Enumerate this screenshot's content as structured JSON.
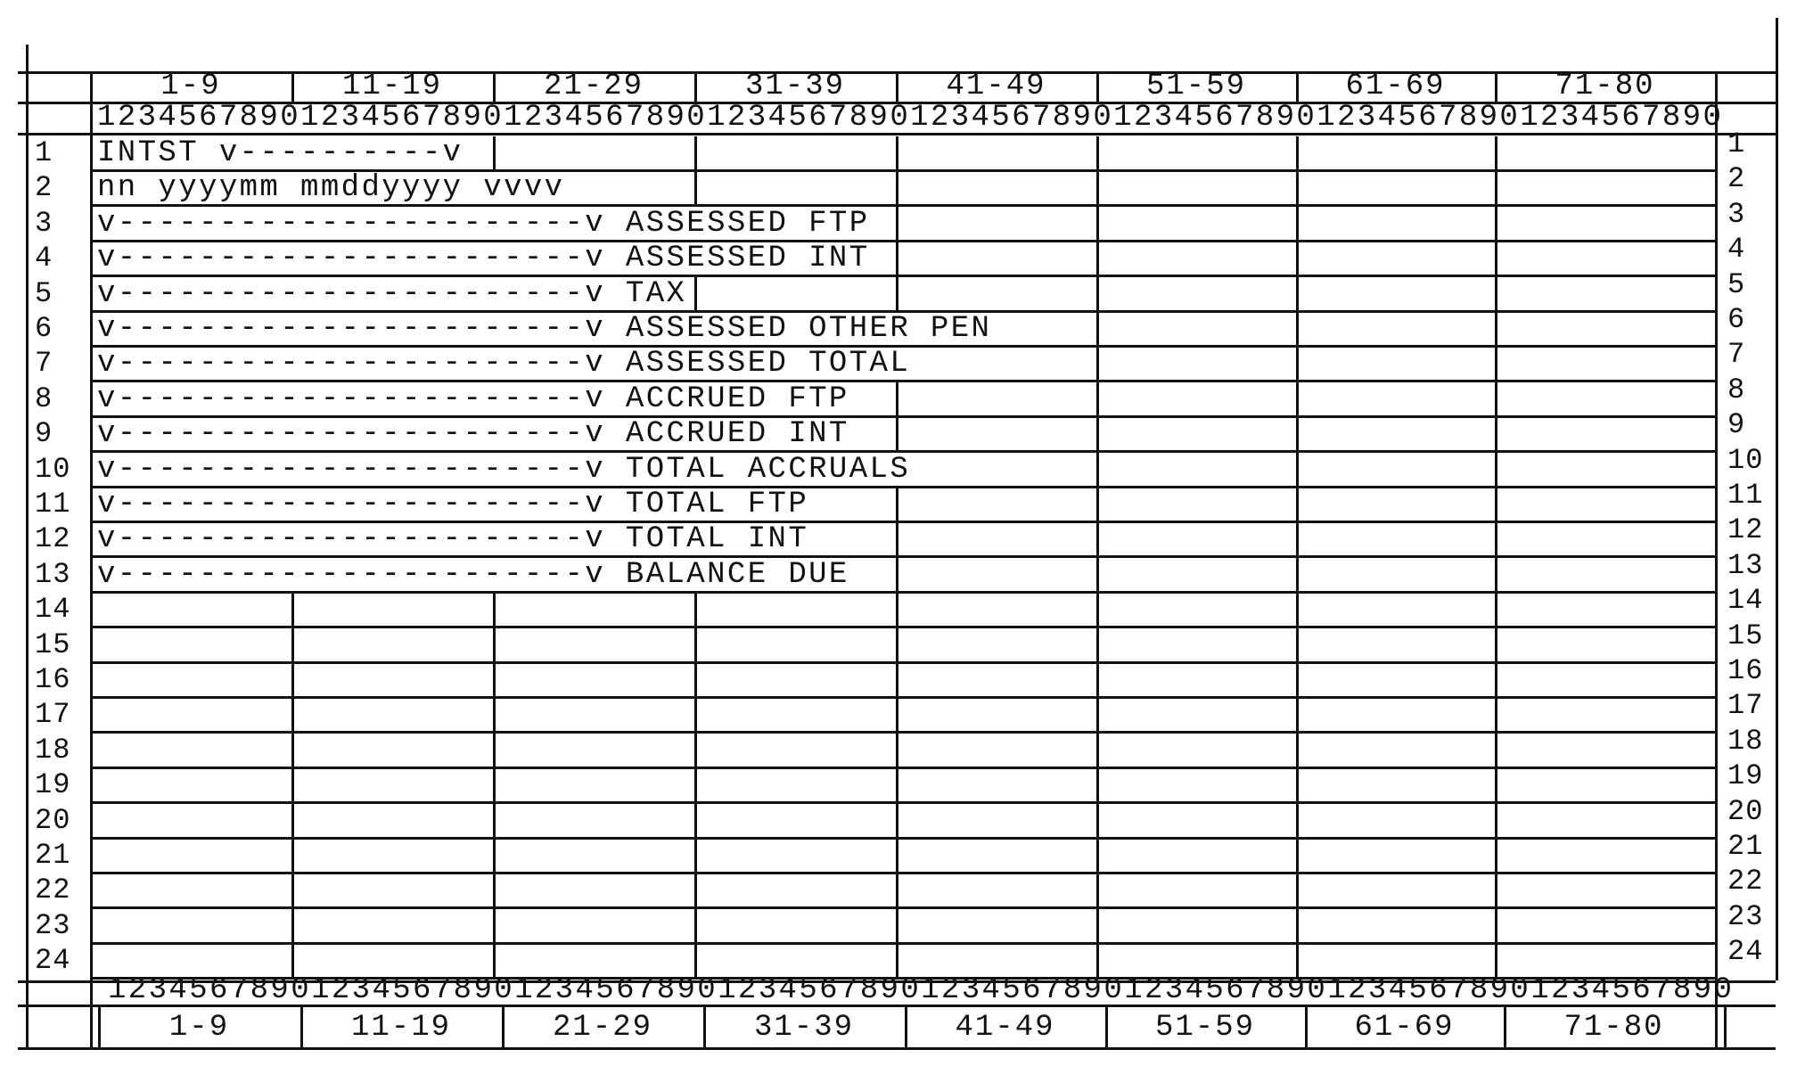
{
  "column_ranges": [
    "1-9",
    "11-19",
    "21-29",
    "31-39",
    "41-49",
    "51-59",
    "61-69",
    "71-80"
  ],
  "ruler": "12345678901234567890123456789012345678901234567890123456789012345678901234567890",
  "row_numbers": [
    "1",
    "2",
    "3",
    "4",
    "5",
    "6",
    "7",
    "8",
    "9",
    "10",
    "11",
    "12",
    "13",
    "14",
    "15",
    "16",
    "17",
    "18",
    "19",
    "20",
    "21",
    "22",
    "23",
    "24"
  ],
  "rows": [
    "INTST v----------v",
    "nn yyyymm mmddyyyy vvvv",
    "v-----------------------v ASSESSED FTP",
    "v-----------------------v ASSESSED INT",
    "v-----------------------v TAX",
    "v-----------------------v ASSESSED OTHER PEN",
    "v-----------------------v ASSESSED TOTAL",
    "v-----------------------v ACCRUED FTP",
    "v-----------------------v ACCRUED INT",
    "v-----------------------v TOTAL ACCRUALS",
    "v-----------------------v TOTAL FTP",
    "v-----------------------v TOTAL INT",
    "v-----------------------v BALANCE DUE"
  ]
}
